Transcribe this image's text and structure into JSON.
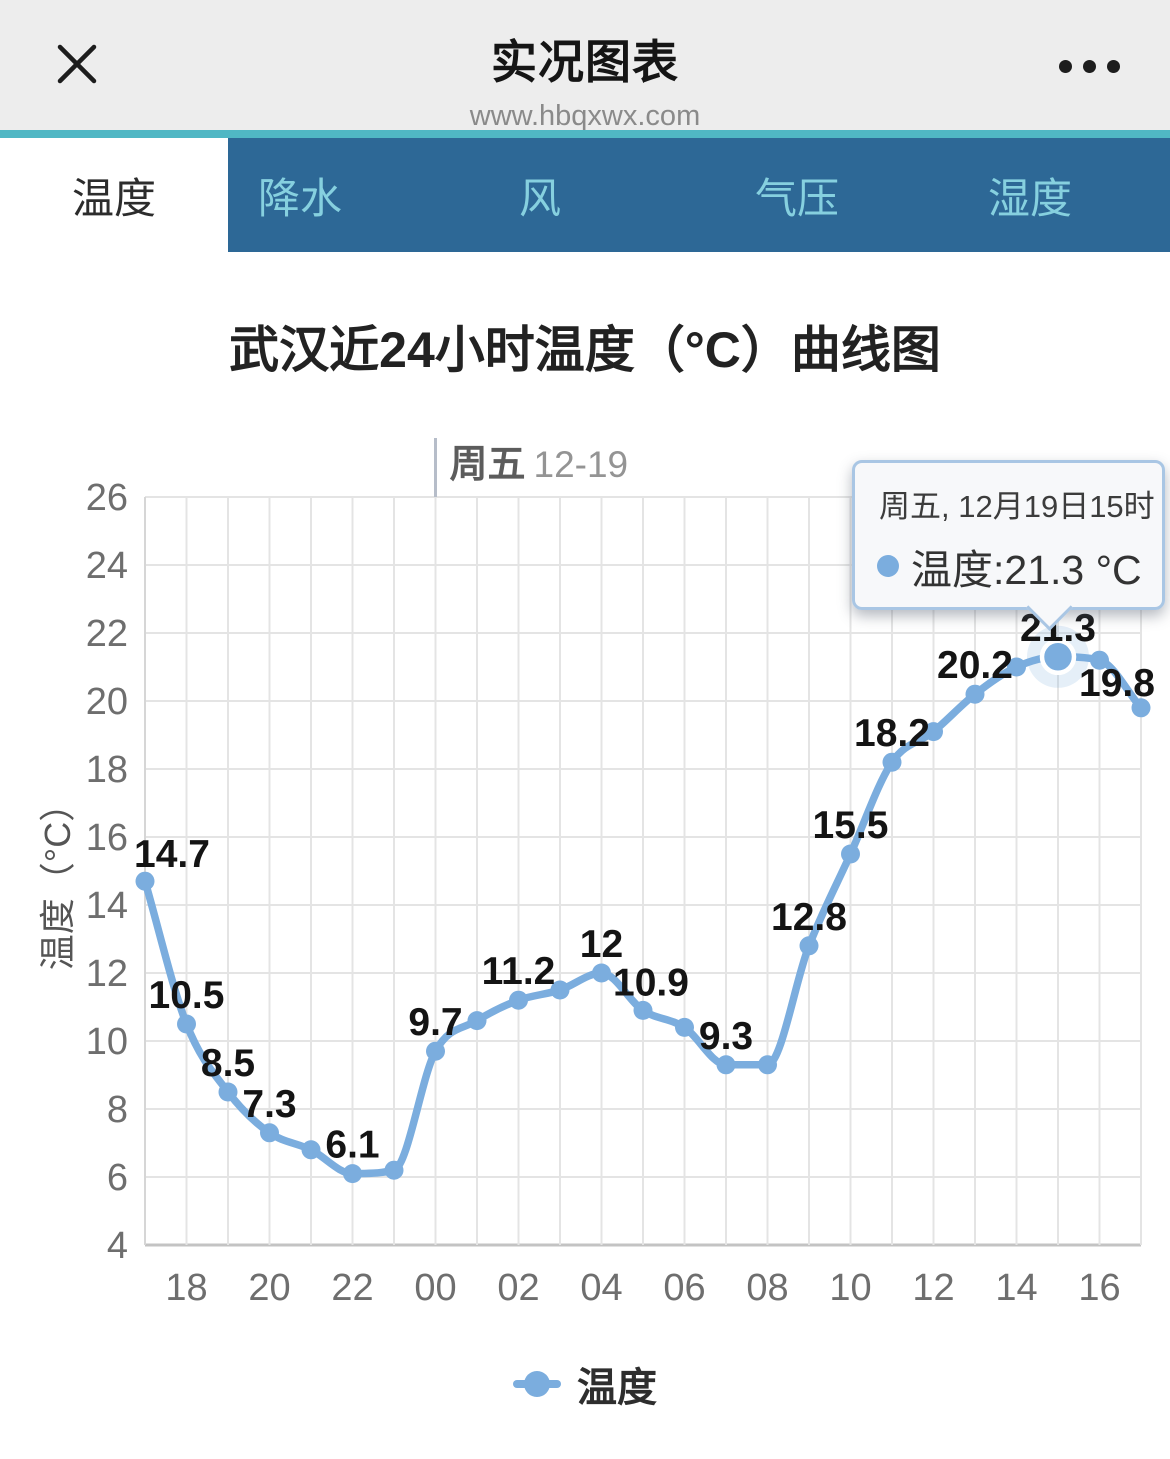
{
  "header": {
    "title": "实况图表",
    "url": "www.hbqxwx.com"
  },
  "icons": [
    "close-icon",
    "more-menu-icon",
    "series-dot-icon",
    "legend-marker-icon"
  ],
  "colors": {
    "accent_teal": "#50b7c4",
    "tabbar_bg": "#2d6896",
    "tab_text": "#86d0df",
    "active_tab_bg": "#ffffff",
    "header_bg": "#ededed",
    "line_blue": "#7badde",
    "tooltip_border": "#a9c6e4",
    "gridline": "#e4e4e4"
  },
  "tabs": {
    "items": [
      {
        "label": "温度",
        "active": true
      },
      {
        "label": "降水",
        "active": false
      },
      {
        "label": "风",
        "active": false
      },
      {
        "label": "气压",
        "active": false
      },
      {
        "label": "湿度",
        "active": false
      }
    ]
  },
  "chart_data": {
    "type": "line",
    "title": "武汉近24小时温度（°C）曲线图",
    "xlabel": "",
    "ylabel": "温度（°C）",
    "ylim": [
      4,
      26
    ],
    "y_ticks": [
      4,
      6,
      8,
      10,
      12,
      14,
      16,
      18,
      20,
      22,
      24,
      26
    ],
    "grid": true,
    "legend_position": "bottom",
    "line_color": "#7badde",
    "x_hours": [
      "17",
      "18",
      "19",
      "20",
      "21",
      "22",
      "23",
      "00",
      "01",
      "02",
      "03",
      "04",
      "05",
      "06",
      "07",
      "08",
      "09",
      "10",
      "11",
      "12",
      "13",
      "14",
      "15",
      "16",
      "17"
    ],
    "series": [
      {
        "name": "温度",
        "values": [
          14.7,
          10.5,
          8.5,
          7.3,
          6.8,
          6.1,
          6.2,
          9.7,
          10.6,
          11.2,
          11.5,
          12,
          10.9,
          10.4,
          9.3,
          9.3,
          12.8,
          15.5,
          18.2,
          19.1,
          20.2,
          21.0,
          21.3,
          21.2,
          19.8
        ]
      }
    ],
    "data_labels": [
      "14.7",
      "10.5",
      "8.5",
      "7.3",
      null,
      "6.1",
      null,
      "9.7",
      null,
      "11.2",
      null,
      "12",
      "10.9",
      null,
      "9.3",
      null,
      "12.8",
      "15.5",
      "18.2",
      null,
      "20.2",
      null,
      "21.3",
      null,
      "19.8"
    ],
    "day_marker": {
      "weekday": "周五",
      "date": "12-19",
      "at_hour": "00",
      "index": 7
    },
    "highlight": {
      "index": 22,
      "hour": "15",
      "value": 21.3
    }
  },
  "tooltip": {
    "title": "周五, 12月19日15时",
    "series": "温度",
    "value": "21.3",
    "unit": "°C",
    "value_text": "温度:21.3 °C"
  },
  "legend": {
    "label": "温度"
  }
}
